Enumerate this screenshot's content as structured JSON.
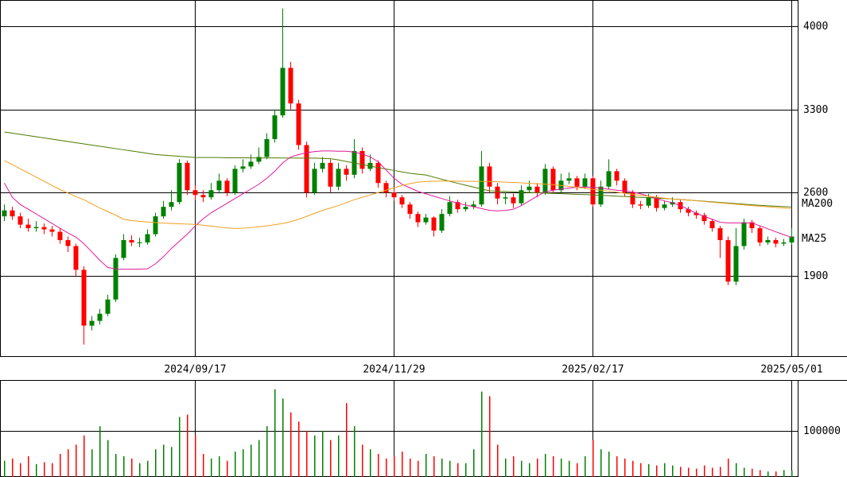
{
  "chart_data": {
    "type": "candlestick",
    "categories": [
      null,
      null,
      null,
      null,
      null,
      null,
      null,
      null,
      null,
      null,
      null,
      null,
      null,
      null,
      null,
      null,
      null,
      null,
      null,
      null,
      null,
      null,
      null,
      null,
      "2024/09/17",
      null,
      null,
      null,
      null,
      null,
      null,
      null,
      null,
      null,
      null,
      null,
      null,
      null,
      null,
      null,
      null,
      null,
      null,
      null,
      null,
      null,
      null,
      null,
      null,
      "2024/11/29",
      null,
      null,
      null,
      null,
      null,
      null,
      null,
      null,
      null,
      null,
      null,
      null,
      null,
      null,
      null,
      null,
      null,
      null,
      null,
      null,
      null,
      null,
      null,
      null,
      "2025/02/17",
      null,
      null,
      null,
      null,
      null,
      null,
      null,
      null,
      null,
      null,
      null,
      null,
      null,
      null,
      null,
      null,
      null,
      null,
      null,
      null,
      null,
      null,
      null,
      null,
      "2025/05/01"
    ],
    "open": [
      2400,
      2450,
      2400,
      2330,
      2300,
      2310,
      2290,
      2270,
      2200,
      2150,
      1950,
      1480,
      1520,
      1580,
      1700,
      2050,
      2200,
      2180,
      2180,
      2250,
      2400,
      2480,
      2520,
      2850,
      2620,
      2580,
      2560,
      2620,
      2700,
      2600,
      2800,
      2820,
      2860,
      2900,
      3050,
      3250,
      3650,
      3350,
      3000,
      2600,
      2800,
      2850,
      2650,
      2800,
      2750,
      2950,
      2800,
      2850,
      2680,
      2600,
      2560,
      2500,
      2420,
      2350,
      2390,
      2280,
      2420,
      2520,
      2460,
      2480,
      2500,
      2820,
      2650,
      2550,
      2560,
      2510,
      2620,
      2650,
      2600,
      2800,
      2620,
      2700,
      2720,
      2650,
      2720,
      2500,
      2650,
      2780,
      2700,
      2600,
      2500,
      2490,
      2560,
      2470,
      2500,
      2520,
      2460,
      2430,
      2410,
      2360,
      2300,
      2200,
      1850,
      2150,
      2350,
      2300,
      2180,
      2200,
      2170,
      2180
    ],
    "high": [
      2500,
      2480,
      2430,
      2380,
      2360,
      2340,
      2320,
      2300,
      2230,
      2170,
      1980,
      1560,
      1620,
      1740,
      2080,
      2250,
      2240,
      2220,
      2290,
      2430,
      2530,
      2620,
      2880,
      2870,
      2660,
      2620,
      2680,
      2760,
      2720,
      2830,
      2880,
      2920,
      2980,
      3100,
      3300,
      4150,
      3700,
      3380,
      3030,
      2850,
      2900,
      2880,
      2850,
      2830,
      3050,
      2980,
      2920,
      2870,
      2700,
      2630,
      2580,
      2520,
      2440,
      2420,
      2400,
      2460,
      2570,
      2540,
      2520,
      2530,
      2950,
      2850,
      2680,
      2600,
      2590,
      2660,
      2700,
      2680,
      2840,
      2820,
      2760,
      2770,
      2740,
      2760,
      2740,
      2700,
      2880,
      2800,
      2720,
      2620,
      2530,
      2590,
      2580,
      2530,
      2560,
      2540,
      2480,
      2450,
      2430,
      2380,
      2320,
      2230,
      2300,
      2380,
      2370,
      2320,
      2230,
      2220,
      2210,
      2300
    ],
    "low": [
      2360,
      2370,
      2300,
      2270,
      2270,
      2250,
      2230,
      2170,
      2100,
      1900,
      1320,
      1440,
      1490,
      1560,
      1680,
      2030,
      2150,
      2140,
      2160,
      2230,
      2380,
      2450,
      2500,
      2580,
      2540,
      2520,
      2540,
      2600,
      2570,
      2580,
      2770,
      2800,
      2840,
      2880,
      3020,
      3230,
      3300,
      2960,
      2560,
      2580,
      2770,
      2600,
      2620,
      2700,
      2720,
      2760,
      2780,
      2640,
      2560,
      2530,
      2470,
      2380,
      2310,
      2330,
      2230,
      2260,
      2400,
      2430,
      2440,
      2460,
      2480,
      2600,
      2500,
      2500,
      2470,
      2490,
      2600,
      2560,
      2580,
      2590,
      2600,
      2670,
      2620,
      2630,
      2480,
      2480,
      2630,
      2660,
      2570,
      2470,
      2460,
      2470,
      2440,
      2450,
      2480,
      2430,
      2400,
      2380,
      2330,
      2270,
      2050,
      1820,
      1820,
      2120,
      2260,
      2150,
      2160,
      2140,
      2150,
      2160
    ],
    "close": [
      2450,
      2400,
      2330,
      2300,
      2310,
      2290,
      2270,
      2200,
      2150,
      1950,
      1480,
      1520,
      1580,
      1700,
      2050,
      2200,
      2180,
      2180,
      2250,
      2400,
      2480,
      2520,
      2850,
      2620,
      2580,
      2560,
      2620,
      2700,
      2600,
      2800,
      2820,
      2860,
      2900,
      3050,
      3250,
      3650,
      3350,
      3000,
      2600,
      2800,
      2850,
      2650,
      2800,
      2750,
      2950,
      2800,
      2850,
      2680,
      2600,
      2560,
      2500,
      2420,
      2350,
      2390,
      2280,
      2420,
      2520,
      2460,
      2480,
      2500,
      2820,
      2650,
      2550,
      2560,
      2510,
      2620,
      2650,
      2600,
      2800,
      2620,
      2700,
      2720,
      2650,
      2720,
      2500,
      2650,
      2780,
      2700,
      2600,
      2500,
      2490,
      2560,
      2470,
      2500,
      2520,
      2460,
      2430,
      2410,
      2360,
      2300,
      2200,
      1850,
      2150,
      2350,
      2300,
      2180,
      2200,
      2170,
      2180,
      2230
    ],
    "up_color": "#008000",
    "down_color": "#ff0000",
    "ylim": [
      1223,
      4221
    ],
    "yticks": [
      1900,
      2600,
      3300,
      4000
    ],
    "lines": [
      {
        "name": "MA200",
        "color": "#4d7a00",
        "values": [
          3110,
          3100,
          3090,
          3080,
          3070,
          3060,
          3050,
          3040,
          3030,
          3020,
          3010,
          3000,
          2990,
          2980,
          2970,
          2960,
          2950,
          2940,
          2930,
          2920,
          2915,
          2910,
          2905,
          2900,
          2895,
          2895,
          2895,
          2895,
          2893,
          2893,
          2893,
          2892,
          2892,
          2892,
          2892,
          2891,
          2891,
          2890,
          2890,
          2890,
          2888,
          2885,
          2875,
          2862,
          2849,
          2836,
          2823,
          2810,
          2798,
          2786,
          2774,
          2762,
          2755,
          2748,
          2730,
          2712,
          2695,
          2678,
          2662,
          2646,
          2630,
          2615,
          2612,
          2609,
          2606,
          2604,
          2601,
          2598,
          2596,
          2593,
          2591,
          2588,
          2585,
          2583,
          2580,
          2577,
          2574,
          2570,
          2567,
          2563,
          2560,
          2557,
          2553,
          2550,
          2546,
          2542,
          2537,
          2532,
          2527,
          2522,
          2517,
          2512,
          2507,
          2502,
          2497,
          2493,
          2489,
          2485,
          2482,
          2479
        ]
      },
      {
        "name": "MA25",
        "color": "#e0199a",
        "values": [
          2680,
          2560,
          2500,
          2460,
          2420,
          2380,
          2340,
          2300,
          2260,
          2225,
          2170,
          2100,
          2030,
          1970,
          1956,
          1955,
          1955,
          1956,
          1958,
          2000,
          2060,
          2130,
          2190,
          2250,
          2320,
          2380,
          2430,
          2470,
          2510,
          2550,
          2590,
          2630,
          2670,
          2720,
          2780,
          2850,
          2900,
          2920,
          2935,
          2945,
          2950,
          2950,
          2948,
          2948,
          2940,
          2925,
          2900,
          2860,
          2790,
          2720,
          2670,
          2640,
          2610,
          2590,
          2570,
          2550,
          2530,
          2510,
          2495,
          2480,
          2465,
          2450,
          2446,
          2450,
          2460,
          2490,
          2530,
          2570,
          2605,
          2620,
          2630,
          2638,
          2644,
          2647,
          2645,
          2638,
          2628,
          2620,
          2615,
          2605,
          2590,
          2570,
          2550,
          2530,
          2515,
          2490,
          2460,
          2425,
          2400,
          2375,
          2350,
          2345,
          2345,
          2345,
          2345,
          2320,
          2295,
          2270,
          2245,
          2224
        ]
      },
      {
        "color": "#f0a020",
        "values": [
          2870,
          2835,
          2800,
          2765,
          2730,
          2695,
          2660,
          2625,
          2595,
          2565,
          2540,
          2505,
          2470,
          2440,
          2410,
          2375,
          2365,
          2358,
          2352,
          2347,
          2343,
          2340,
          2337,
          2335,
          2332,
          2325,
          2318,
          2310,
          2302,
          2298,
          2300,
          2305,
          2312,
          2320,
          2330,
          2340,
          2355,
          2375,
          2400,
          2425,
          2450,
          2470,
          2490,
          2515,
          2540,
          2560,
          2580,
          2600,
          2620,
          2640,
          2660,
          2675,
          2688,
          2693,
          2695,
          2697,
          2697,
          2696,
          2695,
          2694,
          2694,
          2693,
          2691,
          2688,
          2685,
          2682,
          2678,
          2675,
          2671,
          2667,
          2660,
          2652,
          2644,
          2636,
          2627,
          2620,
          2612,
          2603,
          2594,
          2585,
          2577,
          2569,
          2561,
          2553,
          2546,
          2541,
          2536,
          2531,
          2525,
          2519,
          2514,
          2508,
          2502,
          2496,
          2490,
          2485,
          2480,
          2475,
          2470,
          2466
        ]
      }
    ],
    "volume": {
      "ylim": [
        0,
        210000
      ],
      "yticks": [
        100000
      ],
      "values": [
        35000,
        40000,
        30000,
        45000,
        28000,
        32000,
        30000,
        50000,
        60000,
        70000,
        90000,
        60000,
        110000,
        80000,
        50000,
        45000,
        40000,
        30000,
        35000,
        60000,
        70000,
        65000,
        130000,
        135000,
        90000,
        50000,
        40000,
        45000,
        35000,
        55000,
        60000,
        70000,
        80000,
        110000,
        190000,
        170000,
        140000,
        120000,
        100000,
        90000,
        100000,
        80000,
        90000,
        160000,
        110000,
        70000,
        60000,
        50000,
        40000,
        45000,
        55000,
        40000,
        35000,
        50000,
        45000,
        40000,
        35000,
        30000,
        30000,
        60000,
        185000,
        175000,
        70000,
        40000,
        45000,
        35000,
        30000,
        40000,
        50000,
        45000,
        40000,
        35000,
        30000,
        45000,
        80000,
        60000,
        55000,
        45000,
        40000,
        35000,
        30000,
        28000,
        25000,
        30000,
        25000,
        22000,
        20000,
        18000,
        25000,
        20000,
        22000,
        40000,
        30000,
        20000,
        18000,
        15000,
        12000,
        12000,
        15000,
        14000
      ]
    }
  }
}
